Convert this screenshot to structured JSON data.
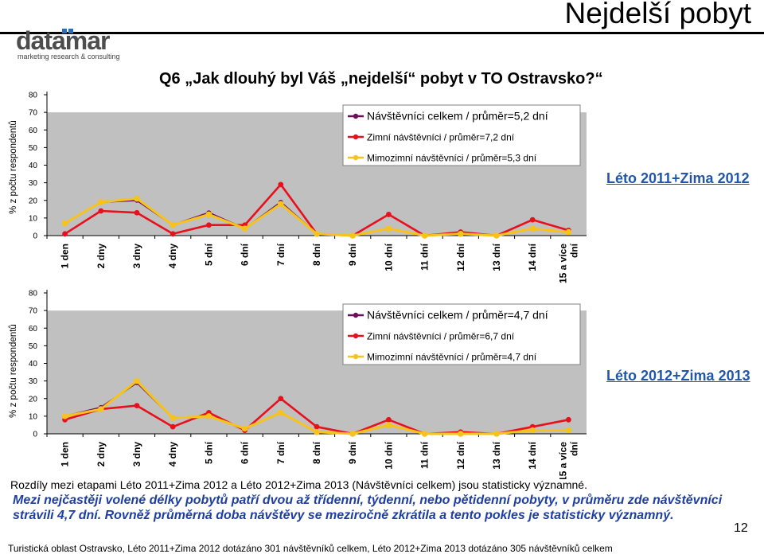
{
  "page_title": "Nejdelší pobyt",
  "logo": {
    "name": "datamar",
    "tagline": "marketing research & consulting"
  },
  "question": "Q6 „Jak dlouhý byl Váš „nejdelší“ pobyt v TO Ostravsko?“",
  "colors": {
    "total": "#6b0f5c",
    "winter": "#e8101c",
    "offseason": "#f7c21a",
    "plot_bg": "#c0c0c0",
    "accent_text": "#2456a8"
  },
  "chart_data": [
    {
      "type": "line",
      "period_label": "Léto 2011+Zima 2012",
      "categories": [
        "1 den",
        "2 dny",
        "3 dny",
        "4 dny",
        "5 dní",
        "6 dní",
        "7 dní",
        "8 dní",
        "9 dní",
        "10 dní",
        "11 dní",
        "12 dní",
        "13 dní",
        "14 dní",
        "15 a více dní"
      ],
      "ylabel": "% z počtu respondentů",
      "ylim": [
        0,
        80
      ],
      "yticks": [
        0,
        10,
        20,
        30,
        40,
        50,
        60,
        70,
        80
      ],
      "grid": false,
      "legend_position": "top-right",
      "series": [
        {
          "name": "Návštěvníci celkem / průměr=5,2 dní",
          "values": [
            7,
            19,
            20,
            6,
            13,
            4,
            19,
            1,
            0,
            4,
            0,
            1,
            0,
            4,
            2
          ]
        },
        {
          "name": "Zimní návštěvníci / průměr=7,2 dní",
          "values": [
            1,
            14,
            13,
            1,
            6,
            6,
            29,
            1,
            0,
            12,
            0,
            2,
            0,
            9,
            3
          ]
        },
        {
          "name": "Mimozimní návštěvníci / průměr=5,3 dní",
          "values": [
            7,
            19,
            21,
            6,
            12,
            4,
            18,
            1,
            0,
            4,
            0,
            1,
            0,
            4,
            2
          ]
        }
      ]
    },
    {
      "type": "line",
      "period_label": "Léto 2012+Zima 2013",
      "categories": [
        "1 den",
        "2 dny",
        "3 dny",
        "4 dny",
        "5 dní",
        "6 dní",
        "7 dní",
        "8 dní",
        "9 dní",
        "10 dní",
        "11 dní",
        "12 dní",
        "13 dní",
        "14 dní",
        "15 a více dní"
      ],
      "ylabel": "% z počtu respondentů",
      "ylim": [
        0,
        80
      ],
      "yticks": [
        0,
        10,
        20,
        30,
        40,
        50,
        60,
        70,
        80
      ],
      "grid": false,
      "legend_position": "top-right",
      "series": [
        {
          "name": "Návštěvníci celkem / průměr=4,7 dní",
          "values": [
            10,
            15,
            29,
            9,
            10,
            3,
            12,
            1,
            0,
            5,
            0,
            0,
            0,
            2,
            2
          ]
        },
        {
          "name": "Zimní návštěvníci / průměr=6,7 dní",
          "values": [
            8,
            14,
            16,
            4,
            12,
            2,
            20,
            4,
            0,
            8,
            0,
            1,
            0,
            4,
            8
          ]
        },
        {
          "name": "Mimozimní návštěvníci / průměr=4,7 dní",
          "values": [
            10,
            14,
            30,
            9,
            10,
            3,
            12,
            1,
            0,
            5,
            0,
            0,
            0,
            2,
            2
          ]
        }
      ]
    }
  ],
  "notes": {
    "significance": "Rozdíly mezi etapami Léto 2011+Zima 2012 a Léto 2012+Zima 2013 (Návštěvníci celkem) jsou statisticky významné.",
    "summary": "Mezi nejčastěji volené délky pobytů patří dvou až třídenní, týdenní, nebo pětidenní pobyty, v průměru zde návštěvníci strávili 4,7 dní. Rovněž průměrná doba návštěvy se meziročně zkrátila a tento pokles je statisticky významný."
  },
  "page_number": "12",
  "footer": "Turistická oblast Ostravsko, Léto 2011+Zima 2012 dotázáno 301 návštěvníků celkem, Léto 2012+Zima 2013 dotázáno 305 návštěvníků celkem"
}
